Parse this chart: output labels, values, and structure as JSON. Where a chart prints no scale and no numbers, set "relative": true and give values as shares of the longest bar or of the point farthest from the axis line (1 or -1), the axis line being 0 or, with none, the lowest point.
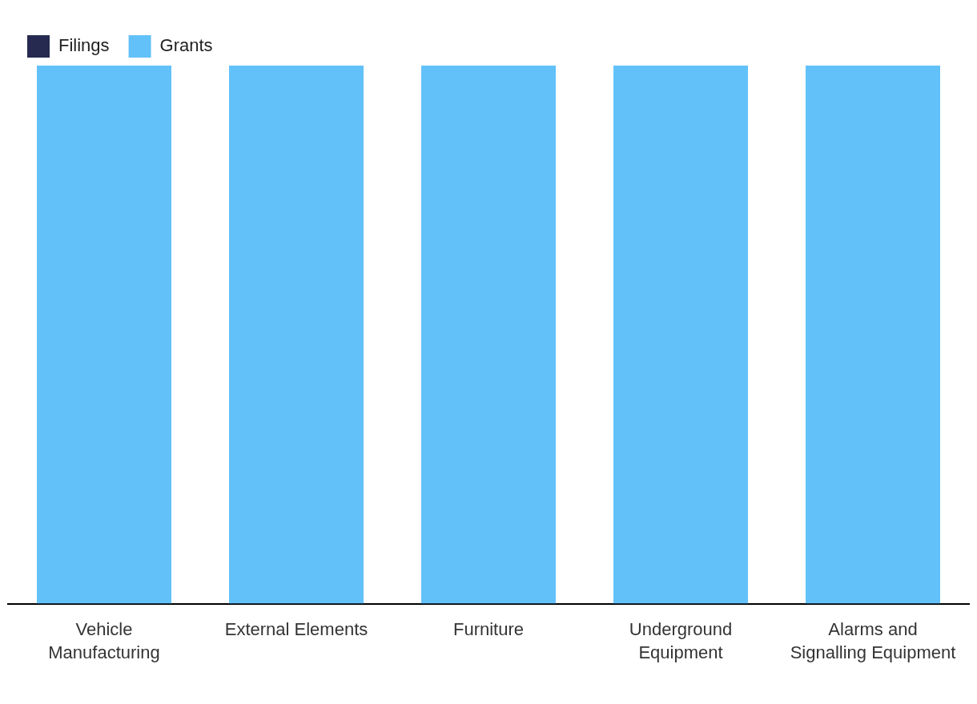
{
  "chart_data": {
    "type": "bar",
    "stacked": true,
    "relative": true,
    "legend": "top left",
    "grid": false,
    "categories": [
      "Vehicle Manufacturing",
      "External Elements",
      "Furniture",
      "Underground Equipment",
      "Alarms and Signalling Equipment"
    ],
    "series": [
      {
        "name": "Filings",
        "color": "#262a50",
        "values": [
          0,
          0,
          0,
          0,
          0
        ]
      },
      {
        "name": "Grants",
        "color": "#62c1f9",
        "values": [
          1,
          1,
          1,
          1,
          1
        ]
      }
    ]
  }
}
